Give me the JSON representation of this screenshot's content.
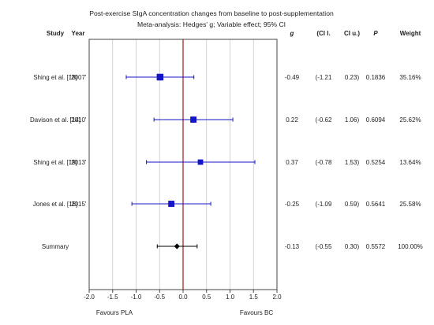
{
  "chart_data": {
    "type": "forest",
    "title": "Post-exercise SIgA concentration changes from baseline to post-supplementation",
    "subtitle": "Meta-analysis: Hedges' g; Variable effect; 95% CI",
    "headers": {
      "study": "Study",
      "year": "Year",
      "g": "g",
      "ci_lower": "(CI l.",
      "ci_upper": "CI u.)",
      "p": "P",
      "weight": "Weight"
    },
    "studies": [
      {
        "study": "Shing et al. [18]",
        "year": "'2007'",
        "g": -0.49,
        "ci_lower": -1.21,
        "ci_upper": 0.23,
        "g_text": "-0.49",
        "ci_lower_text": "(-1.21",
        "ci_upper_text": "0.23)",
        "p_text": "0.1836",
        "weight_text": "35.16%",
        "weight": 35.16
      },
      {
        "study": "Davison et al. [14]",
        "year": "'2010'",
        "g": 0.22,
        "ci_lower": -0.62,
        "ci_upper": 1.06,
        "g_text": "0.22",
        "ci_lower_text": "(-0.62",
        "ci_upper_text": "1.06)",
        "p_text": "0.6094",
        "weight_text": "25.62%",
        "weight": 25.62
      },
      {
        "study": "Shing et al. [19]",
        "year": "'2013'",
        "g": 0.37,
        "ci_lower": -0.78,
        "ci_upper": 1.53,
        "g_text": "0.37",
        "ci_lower_text": "(-0.78",
        "ci_upper_text": "1.53)",
        "p_text": "0.5254",
        "weight_text": "13.64%",
        "weight": 13.64
      },
      {
        "study": "Jones et al. [16]",
        "year": "'2015'",
        "g": -0.25,
        "ci_lower": -1.09,
        "ci_upper": 0.59,
        "g_text": "-0.25",
        "ci_lower_text": "(-1.09",
        "ci_upper_text": "0.59)",
        "p_text": "0.5641",
        "weight_text": "25.58%",
        "weight": 25.58
      }
    ],
    "summary": {
      "study": "Summary",
      "g": -0.13,
      "ci_lower": -0.55,
      "ci_upper": 0.3,
      "g_text": "-0.13",
      "ci_lower_text": "(-0.55",
      "ci_upper_text": "0.30)",
      "p_text": "0.5572",
      "weight_text": "100.00%"
    },
    "x_ticks": [
      -2.0,
      -1.5,
      -1.0,
      -0.5,
      0.0,
      0.5,
      1.0,
      1.5,
      2.0
    ],
    "x_tick_labels": [
      "-2.0",
      "-1.5",
      "-1.0",
      "-0.5",
      "0.0",
      "0.5",
      "1.0",
      "1.5",
      "2.0"
    ],
    "xlim": [
      -2.0,
      2.0
    ],
    "footer": {
      "left": "Favours PLA",
      "right": "Favours BC"
    },
    "grid": true,
    "colors": {
      "study_marker": "#1515c8",
      "summary_marker": "#000000",
      "zero_line": "#a01818",
      "grid": "#c8c8c8",
      "frame": "#444444"
    }
  }
}
